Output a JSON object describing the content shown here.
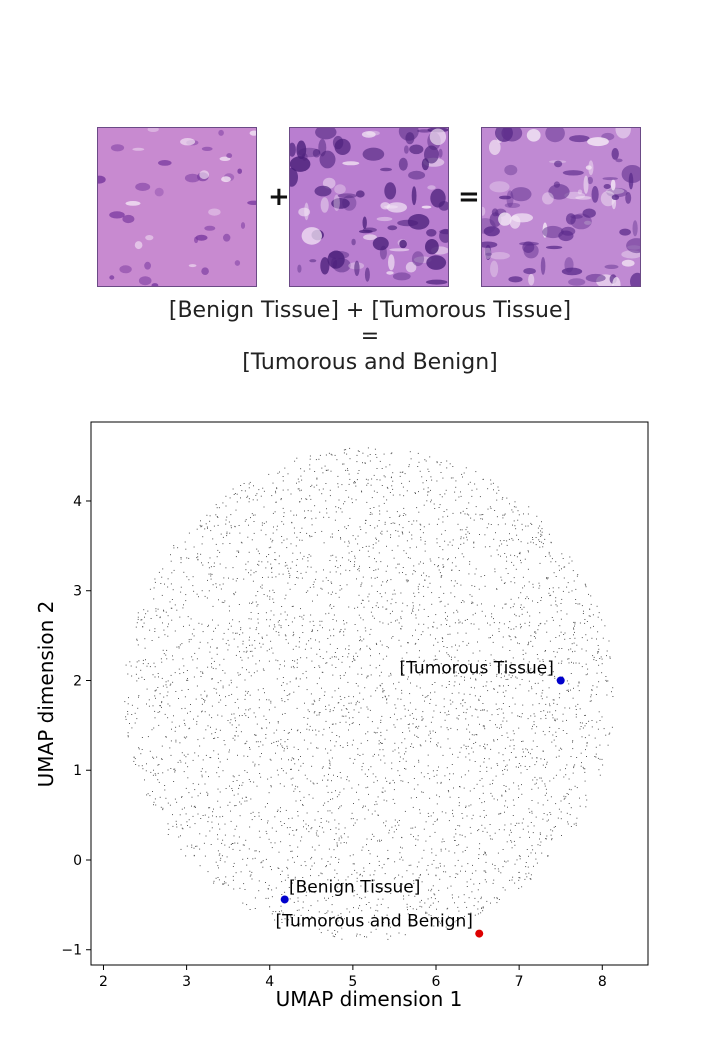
{
  "equation": {
    "plus_symbol": "+",
    "equals_symbol": "=",
    "line1": "[Benign Tissue] + [Tumorous Tissue]",
    "line2": "=",
    "line3": "[Tumorous and Benign]"
  },
  "tiles": [
    {
      "label": "benign-tissue-image",
      "base": "#c88ad0",
      "cell": "#7a3aa0"
    },
    {
      "label": "tumorous-tissue-image",
      "base": "#b97ed0",
      "cell": "#4a1f7a"
    },
    {
      "label": "tumorous-and-benign-image",
      "base": "#c08ad3",
      "cell": "#5a2a8a"
    }
  ],
  "chart_data": {
    "type": "scatter",
    "xlabel": "UMAP dimension 1",
    "ylabel": "UMAP dimension 2",
    "xlim": [
      1.85,
      8.55
    ],
    "ylim": [
      -1.17,
      4.88
    ],
    "xticks": [
      2,
      3,
      4,
      5,
      6,
      7,
      8
    ],
    "yticks": [
      -1,
      0,
      1,
      2,
      3,
      4
    ],
    "background_cloud": {
      "center": [
        5.2,
        1.85
      ],
      "radius_x": 2.95,
      "radius_y": 2.75,
      "color": "#555555"
    },
    "highlighted_points": [
      {
        "label": "[Tumorous Tissue]",
        "x": 7.5,
        "y": 2.0,
        "color": "#0000cc"
      },
      {
        "label": "[Benign Tissue]",
        "x": 4.18,
        "y": -0.44,
        "color": "#0000cc"
      },
      {
        "label": "[Tumorous and Benign]",
        "x": 6.52,
        "y": -0.82,
        "color": "#dd0000"
      }
    ]
  }
}
